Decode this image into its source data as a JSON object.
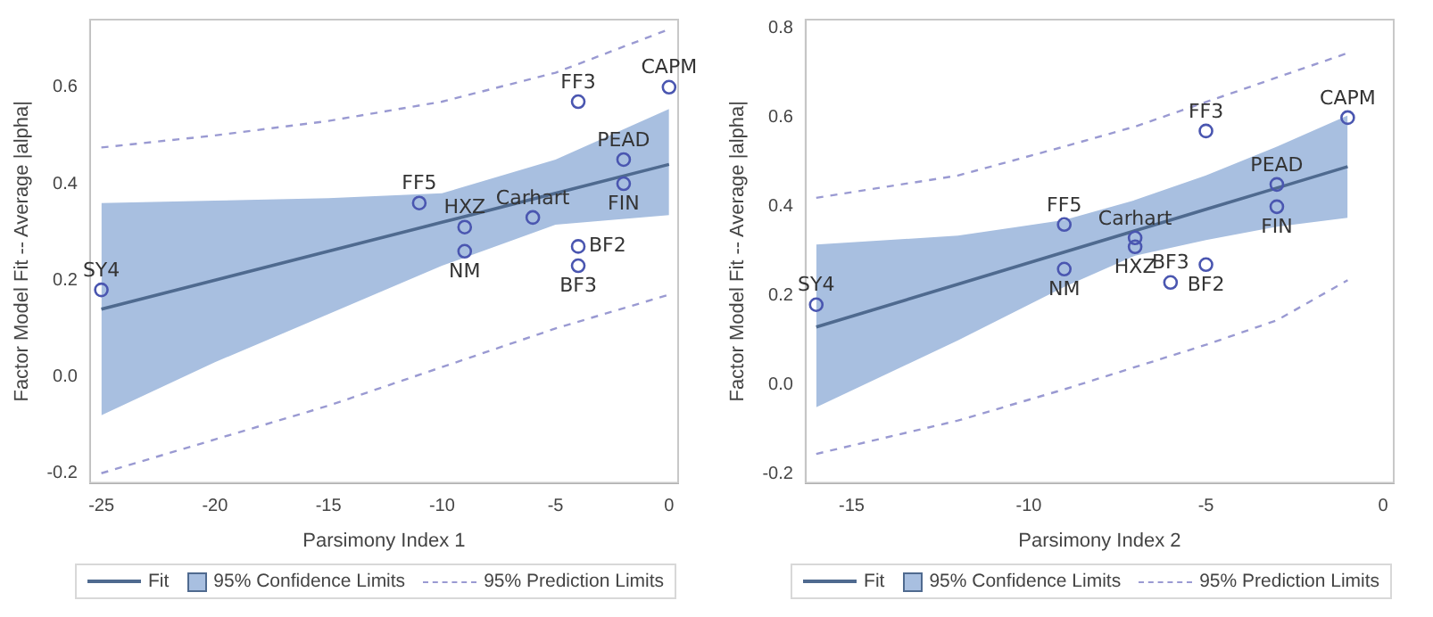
{
  "chart_data": [
    {
      "type": "scatter",
      "xlabel": "Parsimony Index 1",
      "ylabel": "Factor Model Fit -- Average |alpha|",
      "xlim": [
        -25.5,
        0.4
      ],
      "ylim": [
        -0.22,
        0.74
      ],
      "xticks": [
        -25,
        -20,
        -15,
        -10,
        -5,
        0
      ],
      "yticks": [
        -0.2,
        {
          "value": 0,
          "label": "0.0"
        },
        0.2,
        0.4,
        0.6
      ],
      "legend": "bottom",
      "x": [
        -25,
        -11,
        -9,
        -9,
        -6,
        -4,
        -4,
        -4,
        -2,
        -2,
        0
      ],
      "series": [
        {
          "type": "line",
          "name": "Fit",
          "color": "#4f6a8f",
          "x": [
            -25,
            -20,
            -15,
            -10,
            -5,
            0
          ],
          "values": [
            0.14,
            0.2,
            0.26,
            0.32,
            0.38,
            0.44
          ],
          "upper": [
            0.36,
            0.365,
            0.37,
            0.38,
            0.45,
            0.555
          ],
          "lower": [
            -0.08,
            0.03,
            0.13,
            0.23,
            0.315,
            0.335
          ]
        },
        {
          "type": "line",
          "name": "95% Prediction Limits",
          "color": "#9a9ad2",
          "line_style": "dashed",
          "x": [
            -25,
            -20,
            -15,
            -10,
            -5,
            0
          ],
          "values": [
            0.475,
            0.5,
            0.53,
            0.57,
            0.63,
            0.72
          ]
        },
        {
          "type": "line",
          "color": "#9a9ad2",
          "line_style": "dashed",
          "x": [
            -25,
            -20,
            -15,
            -10,
            -5,
            0
          ],
          "values": [
            -0.2,
            -0.13,
            -0.06,
            0.02,
            0.1,
            0.17
          ]
        },
        {
          "color": "#4a56b0",
          "marker": "circle",
          "values": [
            0.18,
            0.36,
            0.31,
            0.26,
            0.33,
            0.27,
            0.23,
            0.57,
            0.45,
            0.4,
            0.6
          ]
        }
      ],
      "annotations": [
        "95% Confidence Limits",
        {
          "text": "SY4",
          "x": -25,
          "y": 0.18
        },
        {
          "text": "FF5",
          "x": -11,
          "y": 0.36
        },
        {
          "text": "HXZ",
          "x": -9,
          "y": 0.31
        },
        {
          "text": "NM",
          "x": -9,
          "y": 0.26
        },
        {
          "text": "Carhart",
          "x": -6,
          "y": 0.33
        },
        {
          "text": "BF2",
          "x": -4,
          "y": 0.27
        },
        {
          "text": "BF3",
          "x": -4,
          "y": 0.23
        },
        {
          "text": "FF3",
          "x": -4,
          "y": 0.57
        },
        {
          "text": "PEAD",
          "x": -2,
          "y": 0.45
        },
        {
          "text": "FIN",
          "x": -2,
          "y": 0.4
        },
        {
          "text": "CAPM",
          "x": 0,
          "y": 0.6
        }
      ]
    },
    {
      "type": "scatter",
      "xlabel": "Parsimony Index 2",
      "ylabel": "Factor Model Fit -- Average |alpha|",
      "xlim": [
        -16.3,
        0.3
      ],
      "ylim": [
        -0.22,
        0.82
      ],
      "xticks": [
        -15,
        -10,
        -5,
        0
      ],
      "yticks": [
        -0.2,
        {
          "value": 0,
          "label": "0.0"
        },
        0.2,
        0.4,
        0.6,
        0.8
      ],
      "legend": "bottom",
      "x": [
        -16,
        -9,
        -9,
        -7,
        -7,
        -6,
        -5,
        -5,
        -3,
        -3,
        -1
      ],
      "series": [
        {
          "type": "line",
          "name": "Fit",
          "color": "#4f6a8f",
          "x": [
            -16,
            -12,
            -9,
            -7,
            -5,
            -3,
            -1
          ],
          "values": [
            0.13,
            0.226,
            0.298,
            0.346,
            0.394,
            0.442,
            0.49
          ],
          "upper": [
            0.315,
            0.335,
            0.37,
            0.415,
            0.47,
            0.535,
            0.605
          ],
          "lower": [
            -0.05,
            0.1,
            0.22,
            0.29,
            0.325,
            0.355,
            0.375
          ]
        },
        {
          "type": "line",
          "name": "95% Prediction Limits",
          "color": "#9a9ad2",
          "line_style": "dashed",
          "x": [
            -16,
            -12,
            -9,
            -7,
            -5,
            -3,
            -1
          ],
          "values": [
            0.42,
            0.47,
            0.535,
            0.58,
            0.635,
            0.69,
            0.745
          ]
        },
        {
          "type": "line",
          "color": "#9a9ad2",
          "line_style": "dashed",
          "x": [
            -16,
            -12,
            -9,
            -7,
            -5,
            -3,
            -1
          ],
          "values": [
            -0.155,
            -0.08,
            -0.01,
            0.04,
            0.09,
            0.145,
            0.235
          ]
        },
        {
          "color": "#4a56b0",
          "marker": "circle",
          "values": [
            0.18,
            0.36,
            0.26,
            0.33,
            0.31,
            0.23,
            0.27,
            0.57,
            0.45,
            0.4,
            0.6
          ]
        }
      ],
      "annotations": [
        "95% Confidence Limits",
        {
          "text": "SY4",
          "x": -16,
          "y": 0.18
        },
        {
          "text": "FF5",
          "x": -9,
          "y": 0.36
        },
        {
          "text": "NM",
          "x": -9,
          "y": 0.26
        },
        {
          "text": "Carhart",
          "x": -7,
          "y": 0.33
        },
        {
          "text": "HXZ",
          "x": -7,
          "y": 0.31
        },
        {
          "text": "BF3",
          "x": -6,
          "y": 0.23
        },
        {
          "text": "BF2",
          "x": -5,
          "y": 0.27
        },
        {
          "text": "FF3",
          "x": -5,
          "y": 0.57
        },
        {
          "text": "PEAD",
          "x": -3,
          "y": 0.45
        },
        {
          "text": "FIN",
          "x": -3,
          "y": 0.4
        },
        {
          "text": "CAPM",
          "x": -1,
          "y": 0.6
        }
      ]
    }
  ]
}
